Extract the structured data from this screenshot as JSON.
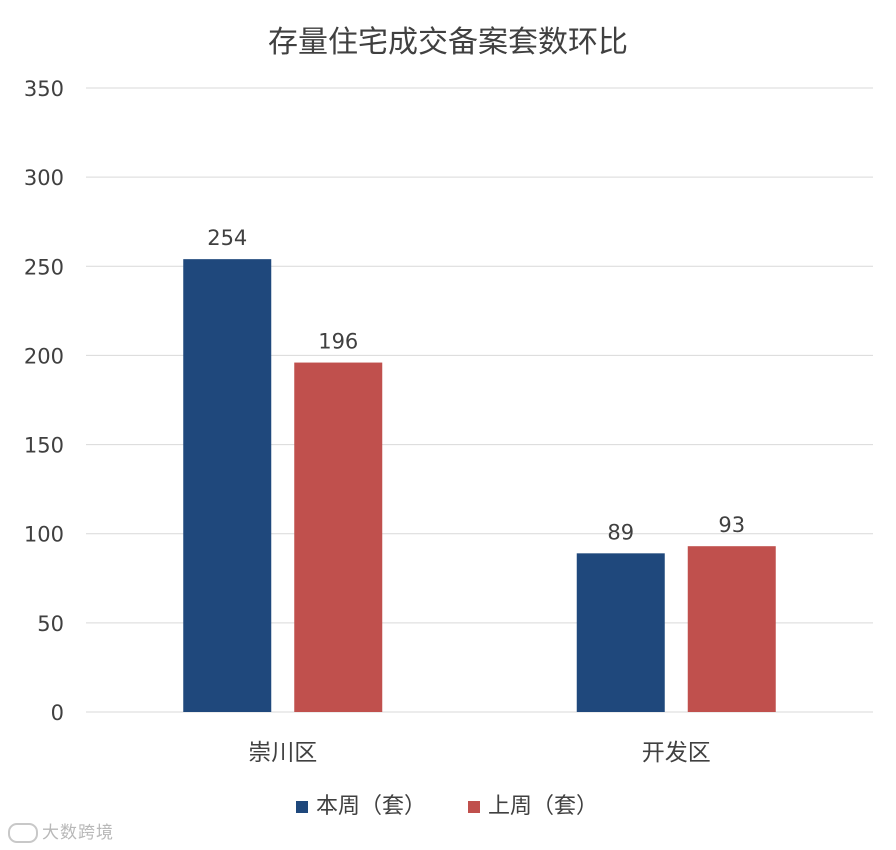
{
  "chart_data": {
    "type": "bar",
    "title": "存量住宅成交备案套数环比",
    "categories": [
      "崇川区",
      "开发区"
    ],
    "series": [
      {
        "name": "本周（套）",
        "values": [
          254,
          89
        ],
        "color": "#1F487C"
      },
      {
        "name": "上周（套）",
        "values": [
          196,
          93
        ],
        "color": "#C0504D"
      }
    ],
    "ylim": [
      0,
      350
    ],
    "yticks": [
      0,
      50,
      100,
      150,
      200,
      250,
      300,
      350
    ],
    "grid": true,
    "legend_position": "bottom",
    "data_labels": true
  },
  "watermark": "大数跨境",
  "colors": {
    "gridline": "#D9D9D9",
    "text": "#404040",
    "background": "#FFFFFF"
  }
}
